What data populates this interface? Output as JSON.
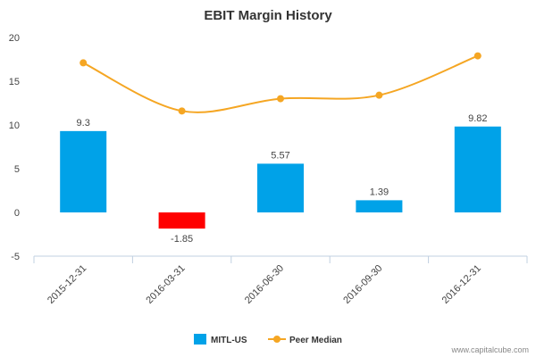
{
  "chart_data": {
    "type": "bar",
    "title": "EBIT Margin History",
    "xlabel": "",
    "ylabel": "",
    "categories": [
      "2015-12-31",
      "2016-03-31",
      "2016-06-30",
      "2016-09-30",
      "2016-12-31"
    ],
    "ylim": [
      -5,
      20
    ],
    "yticks": [
      -5,
      0,
      5,
      10,
      15,
      20
    ],
    "grid": false,
    "legend_position": "bottom-center",
    "series": [
      {
        "name": "MITL-US",
        "type": "bar",
        "values": [
          9.3,
          -1.85,
          5.57,
          1.39,
          9.82
        ],
        "data_labels": [
          "9.3",
          "-1.85",
          "5.57",
          "1.39",
          "9.82"
        ],
        "color": "#00a2e8",
        "negative_color": "#ff0000"
      },
      {
        "name": "Peer Median",
        "type": "line",
        "values": [
          17.1,
          11.6,
          13.0,
          13.4,
          17.9
        ],
        "color": "#f5a623"
      }
    ]
  },
  "credit": "www.capitalcube.com"
}
